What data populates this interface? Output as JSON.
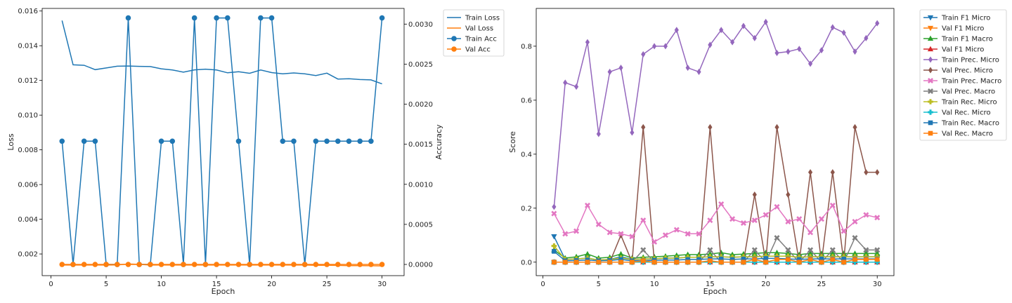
{
  "chart_data": [
    {
      "type": "line",
      "xlabel": "Epoch",
      "ylabel": "Loss",
      "y2label": "Accuracy",
      "xlim": [
        -0.8,
        32
      ],
      "ylim": [
        0.00075,
        0.01615
      ],
      "y2lim": [
        -0.00014,
        0.0031956
      ],
      "xticks": [
        "0",
        "5",
        "10",
        "15",
        "20",
        "25",
        "30"
      ],
      "yticks": [
        "0.002",
        "0.004",
        "0.006",
        "0.008",
        "0.010",
        "0.012",
        "0.014",
        "0.016"
      ],
      "y2ticks": [
        "0.0000",
        "0.0005",
        "0.0010",
        "0.0015",
        "0.0020",
        "0.0025",
        "0.0030"
      ],
      "legend_position": "outside-right",
      "x": [
        1,
        2,
        3,
        4,
        5,
        6,
        7,
        8,
        9,
        10,
        11,
        12,
        13,
        14,
        15,
        16,
        17,
        18,
        19,
        20,
        21,
        22,
        23,
        24,
        25,
        26,
        27,
        28,
        29,
        30
      ],
      "series": [
        {
          "name": "Train Loss",
          "axis": "left",
          "color": "#1f77b4",
          "marker": "none",
          "values": [
            0.01545,
            0.0129,
            0.01287,
            0.01262,
            0.01272,
            0.01282,
            0.01283,
            0.01281,
            0.0128,
            0.01267,
            0.0126,
            0.01248,
            0.01261,
            0.01265,
            0.0126,
            0.01244,
            0.0125,
            0.01241,
            0.0126,
            0.01245,
            0.01238,
            0.01243,
            0.01238,
            0.01228,
            0.01242,
            0.01208,
            0.0121,
            0.01205,
            0.01203,
            0.0118
          ]
        },
        {
          "name": "Val Loss",
          "axis": "left",
          "color": "#ff7f0e",
          "marker": "none",
          "values": [
            0.00136,
            0.00136,
            0.00136,
            0.00136,
            0.00136,
            0.00137,
            0.00142,
            0.0014,
            0.00136,
            0.00137,
            0.00136,
            0.00136,
            0.00136,
            0.00136,
            0.00136,
            0.00136,
            0.00136,
            0.00136,
            0.00136,
            0.00136,
            0.00136,
            0.00136,
            0.00136,
            0.00135,
            0.00135,
            0.00134,
            0.00133,
            0.00133,
            0.00132,
            0.00131
          ]
        },
        {
          "name": "Train Acc",
          "axis": "right",
          "color": "#1f77b4",
          "marker": "circle",
          "values": [
            0.0015385,
            0,
            0.0015385,
            0.0015385,
            0,
            0,
            0.0030769,
            0,
            0,
            0.0015385,
            0.0015385,
            0,
            0.0030769,
            0,
            0.0030769,
            0.0030769,
            0.0015385,
            0,
            0.0030769,
            0.0030769,
            0.0015385,
            0.0015385,
            0,
            0.0015385,
            0.0015385,
            0.0015385,
            0.0015385,
            0.0015385,
            0.0015385,
            0.0030769
          ]
        },
        {
          "name": "Val Acc",
          "axis": "right",
          "color": "#ff7f0e",
          "marker": "circle",
          "values": [
            0,
            0,
            0,
            0,
            0,
            0,
            0,
            0,
            0,
            0,
            0,
            0,
            0,
            0,
            0,
            0,
            0,
            0,
            0,
            0,
            0,
            0,
            0,
            0,
            0,
            0,
            0,
            0,
            0,
            0
          ]
        }
      ]
    },
    {
      "type": "line",
      "xlabel": "Epoch",
      "ylabel": "Score",
      "xlim": [
        -0.6,
        31.5
      ],
      "ylim": [
        -0.05,
        0.94
      ],
      "xticks": [
        "0",
        "5",
        "10",
        "15",
        "20",
        "25",
        "30"
      ],
      "yticks": [
        "0.0",
        "0.2",
        "0.4",
        "0.6",
        "0.8"
      ],
      "legend_position": "outside-right",
      "x": [
        1,
        2,
        3,
        4,
        5,
        6,
        7,
        8,
        9,
        10,
        11,
        12,
        13,
        14,
        15,
        16,
        17,
        18,
        19,
        20,
        21,
        22,
        23,
        24,
        25,
        26,
        27,
        28,
        29,
        30
      ],
      "series": [
        {
          "name": "Train F1 Micro",
          "color": "#1f77b4",
          "marker": "triangle-down",
          "values": [
            0.095,
            0.01,
            0.012,
            0.015,
            0.008,
            0.01,
            0.02,
            0.01,
            0.012,
            0.012,
            0.015,
            0.015,
            0.018,
            0.018,
            0.02,
            0.02,
            0.018,
            0.02,
            0.02,
            0.022,
            0.022,
            0.022,
            0.018,
            0.02,
            0.02,
            0.02,
            0.02,
            0.02,
            0.02,
            0.02
          ]
        },
        {
          "name": "Val F1 Micro",
          "color": "#ff7f0e",
          "marker": "triangle-down",
          "values": [
            0,
            0,
            0,
            0,
            0,
            0,
            0,
            0,
            0,
            0,
            0,
            0,
            0,
            0,
            0,
            0,
            0,
            0,
            0,
            0,
            0,
            0,
            0,
            0,
            0,
            0,
            0,
            0,
            0,
            0
          ]
        },
        {
          "name": "Train F1 Macro",
          "color": "#2ca02c",
          "marker": "triangle-up",
          "values": [
            0.045,
            0.015,
            0.02,
            0.03,
            0.015,
            0.018,
            0.03,
            0.015,
            0.018,
            0.02,
            0.022,
            0.025,
            0.028,
            0.028,
            0.03,
            0.035,
            0.028,
            0.03,
            0.032,
            0.035,
            0.035,
            0.032,
            0.028,
            0.032,
            0.032,
            0.032,
            0.032,
            0.032,
            0.032,
            0.032
          ]
        },
        {
          "name": "Val F1 Micro",
          "color": "#d62728",
          "marker": "triangle-up",
          "values": [
            0,
            0,
            0,
            0,
            0,
            0,
            0,
            0,
            0,
            0,
            0,
            0,
            0,
            0,
            0,
            0,
            0,
            0,
            0,
            0,
            0,
            0,
            0,
            0,
            0,
            0,
            0,
            0,
            0,
            0
          ]
        },
        {
          "name": "Train Prec. Micro",
          "color": "#9467bd",
          "marker": "diamond",
          "values": [
            0.205,
            0.665,
            0.65,
            0.815,
            0.475,
            0.705,
            0.72,
            0.48,
            0.77,
            0.8,
            0.8,
            0.86,
            0.72,
            0.705,
            0.805,
            0.86,
            0.815,
            0.875,
            0.83,
            0.89,
            0.775,
            0.78,
            0.79,
            0.735,
            0.785,
            0.87,
            0.85,
            0.78,
            0.83,
            0.885
          ]
        },
        {
          "name": "Val Prec. Micro",
          "color": "#8c564b",
          "marker": "diamond",
          "values": [
            0,
            0,
            0,
            0,
            0,
            0,
            0.1,
            0,
            0.5,
            0,
            0,
            0,
            0,
            0,
            0.5,
            0,
            0,
            0,
            0.25,
            0,
            0.5,
            0.25,
            0,
            0.333,
            0,
            0.333,
            0,
            0.5,
            0.333,
            0.333
          ]
        },
        {
          "name": "Train Prec. Macro",
          "color": "#e377c2",
          "marker": "x",
          "values": [
            0.18,
            0.105,
            0.115,
            0.21,
            0.14,
            0.11,
            0.105,
            0.095,
            0.155,
            0.075,
            0.1,
            0.12,
            0.105,
            0.105,
            0.155,
            0.215,
            0.16,
            0.145,
            0.155,
            0.175,
            0.205,
            0.15,
            0.16,
            0.11,
            0.16,
            0.21,
            0.115,
            0.15,
            0.175,
            0.165
          ]
        },
        {
          "name": "Val Prec. Macro",
          "color": "#7f7f7f",
          "marker": "x",
          "values": [
            0,
            0,
            0,
            0,
            0,
            0,
            0,
            0,
            0.045,
            0,
            0,
            0,
            0,
            0,
            0.045,
            0,
            0,
            0,
            0.045,
            0,
            0.09,
            0.045,
            0,
            0.045,
            0,
            0.045,
            0,
            0.09,
            0.045,
            0.045
          ]
        },
        {
          "name": "Train Rec. Micro",
          "color": "#bcbd22",
          "marker": "plus",
          "values": [
            0.06,
            0.01,
            0.012,
            0.015,
            0.008,
            0.01,
            0.015,
            0.01,
            0.012,
            0.012,
            0.015,
            0.015,
            0.018,
            0.018,
            0.02,
            0.02,
            0.018,
            0.02,
            0.02,
            0.022,
            0.022,
            0.022,
            0.018,
            0.02,
            0.02,
            0.02,
            0.02,
            0.02,
            0.02,
            0.02
          ]
        },
        {
          "name": "Val Rec. Micro",
          "color": "#17becf",
          "marker": "plus",
          "values": [
            0,
            0,
            0,
            0,
            0,
            0,
            0,
            0,
            0,
            0,
            0,
            0,
            0,
            0,
            0,
            0,
            0,
            0,
            0,
            0,
            0,
            0,
            0,
            0,
            0,
            0,
            0,
            0,
            0,
            0
          ]
        },
        {
          "name": "Train Rec. Macro",
          "color": "#1f77b4",
          "marker": "square",
          "values": [
            0.04,
            0.005,
            0.006,
            0.008,
            0.005,
            0.006,
            0.01,
            0.005,
            0.006,
            0.007,
            0.008,
            0.008,
            0.01,
            0.01,
            0.012,
            0.012,
            0.01,
            0.012,
            0.012,
            0.014,
            0.014,
            0.012,
            0.01,
            0.012,
            0.012,
            0.012,
            0.012,
            0.012,
            0.012,
            0.012
          ]
        },
        {
          "name": "Val Rec. Macro",
          "color": "#ff7f0e",
          "marker": "square",
          "values": [
            0,
            0,
            0,
            0,
            0,
            0,
            0,
            0,
            0.005,
            0,
            0,
            0,
            0,
            0,
            0.005,
            0,
            0,
            0,
            0.01,
            0,
            0.01,
            0.01,
            0,
            0.01,
            0,
            0.01,
            0,
            0.01,
            0.01,
            0.01
          ]
        }
      ]
    }
  ]
}
